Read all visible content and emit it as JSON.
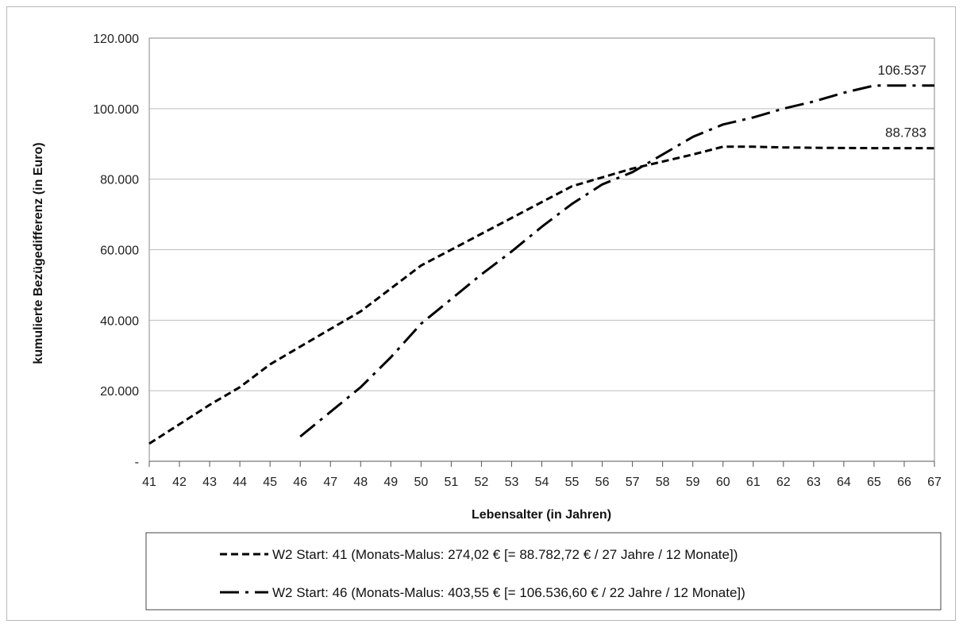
{
  "chart_data": {
    "type": "line",
    "title": "",
    "xlabel": "Lebensalter (in Jahren)",
    "ylabel": "kumulierte Bezügedifferenz (in Euro)",
    "xlim": [
      41,
      67
    ],
    "ylim": [
      0,
      120000
    ],
    "x_ticks": [
      "41",
      "42",
      "43",
      "44",
      "45",
      "46",
      "47",
      "48",
      "49",
      "50",
      "51",
      "52",
      "53",
      "54",
      "55",
      "56",
      "57",
      "58",
      "59",
      "60",
      "61",
      "62",
      "63",
      "64",
      "65",
      "66",
      "67"
    ],
    "y_ticks": [
      {
        "value": 0,
        "label": "-"
      },
      {
        "value": 20000,
        "label": "20.000"
      },
      {
        "value": 40000,
        "label": "40.000"
      },
      {
        "value": 60000,
        "label": "60.000"
      },
      {
        "value": 80000,
        "label": "80.000"
      },
      {
        "value": 100000,
        "label": "100.000"
      },
      {
        "value": 120000,
        "label": "120.000"
      }
    ],
    "grid": "horizontal",
    "legend_position": "bottom",
    "series": [
      {
        "name": "W2 Start: 41 (Monats-Malus: 274,02 € [= 88.782,72 € / 27 Jahre / 12 Monate])",
        "dash": "dashed",
        "color": "#000000",
        "x": [
          41,
          42,
          43,
          44,
          45,
          46,
          47,
          48,
          49,
          50,
          51,
          52,
          53,
          54,
          55,
          56,
          57,
          58,
          59,
          60,
          61,
          62,
          63,
          64,
          65,
          66,
          67
        ],
        "y": [
          5000,
          10500,
          16000,
          21000,
          27500,
          32500,
          37500,
          42500,
          49000,
          55500,
          60000,
          64500,
          69000,
          73500,
          78000,
          80500,
          83000,
          85000,
          87000,
          89200,
          89200,
          89000,
          88900,
          88850,
          88800,
          88790,
          88783
        ],
        "end_label": "88.783"
      },
      {
        "name": "W2 Start: 46 (Monats-Malus: 403,55 € [= 106.536,60 € / 22 Jahre / 12 Monate])",
        "dash": "dash-dot",
        "color": "#000000",
        "x": [
          46,
          47,
          48,
          49,
          50,
          51,
          52,
          53,
          54,
          55,
          56,
          57,
          58,
          59,
          60,
          61,
          62,
          63,
          64,
          65,
          66,
          67
        ],
        "y": [
          7000,
          14000,
          21000,
          29500,
          39000,
          46000,
          53000,
          59500,
          66500,
          73000,
          78500,
          82000,
          87000,
          92000,
          95500,
          97500,
          100000,
          102000,
          104500,
          106537,
          106537,
          106537
        ],
        "end_label": "106.537"
      }
    ]
  }
}
